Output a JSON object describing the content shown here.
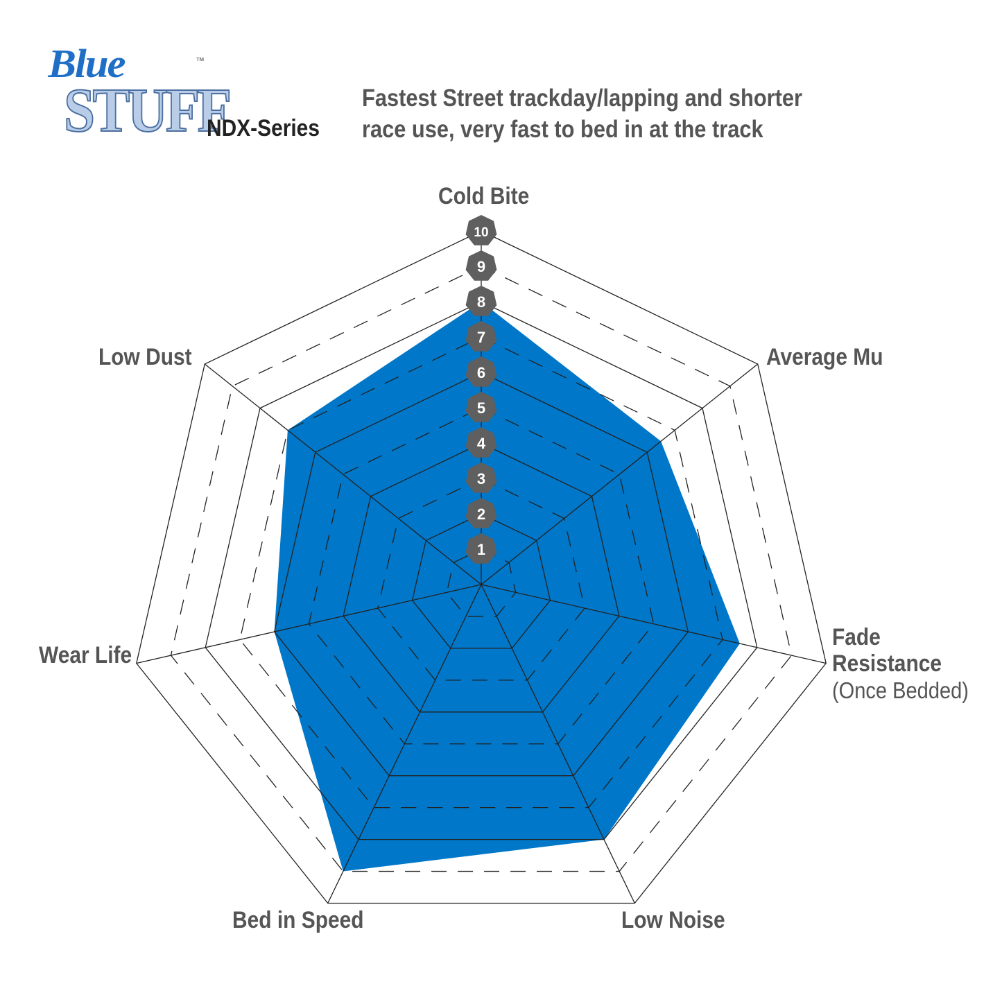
{
  "header": {
    "logo_text": "Blue Stuff",
    "logo_line1": "Blue",
    "logo_line2": "STUFF",
    "trademark": "™",
    "series": "NDX-Series",
    "description_line1": "Fastest Street trackday/lapping and shorter",
    "description_line2": "race use, very fast to bed in at the track"
  },
  "colors": {
    "fill": "#0077c8",
    "badge": "#5f5f5f",
    "grid": "#222222",
    "text": "#555555"
  },
  "chart_data": {
    "type": "radar",
    "scale": [
      1,
      10
    ],
    "tick_labels": [
      "1",
      "2",
      "3",
      "4",
      "5",
      "6",
      "7",
      "8",
      "9",
      "10"
    ],
    "axes": [
      {
        "label": "Cold Bite",
        "value": 8
      },
      {
        "label": "Average Mu",
        "value": 6.5
      },
      {
        "label": "Fade Resistance",
        "sublabel": "(Once Bedded)",
        "value": 7.5
      },
      {
        "label": "Low Noise",
        "value": 8
      },
      {
        "label": "Bed in Speed",
        "value": 9
      },
      {
        "label": "Wear Life",
        "value": 6
      },
      {
        "label": "Low Dust",
        "value": 7
      }
    ],
    "grid": "solid at even levels, dashed at odd levels"
  }
}
